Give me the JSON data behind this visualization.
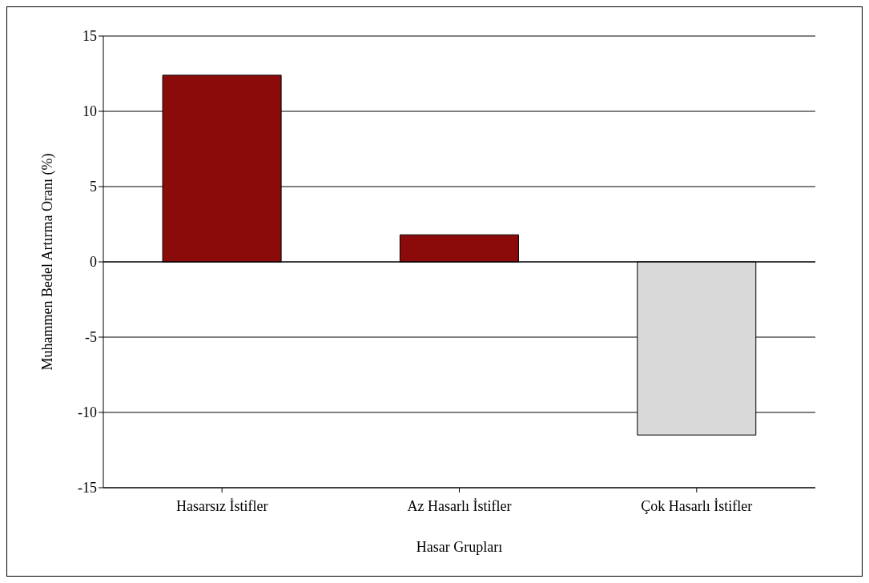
{
  "chart_data": {
    "type": "bar",
    "xlabel": "Hasar Grupları",
    "ylabel": "Muhammen Bedel Artırma Oranı (%)",
    "categories": [
      "Hasarsız  İstifler",
      "Az Hasarlı İstifler",
      "Çok Hasarlı İstifler"
    ],
    "values": [
      12.4,
      1.8,
      -11.5
    ],
    "colors": [
      "#8b0a0a",
      "#8b0a0a",
      "#d9d9d9"
    ],
    "ylim": [
      -15,
      15
    ],
    "yticks": [
      -15,
      -10,
      -5,
      0,
      5,
      10,
      15
    ],
    "grid": "y"
  }
}
